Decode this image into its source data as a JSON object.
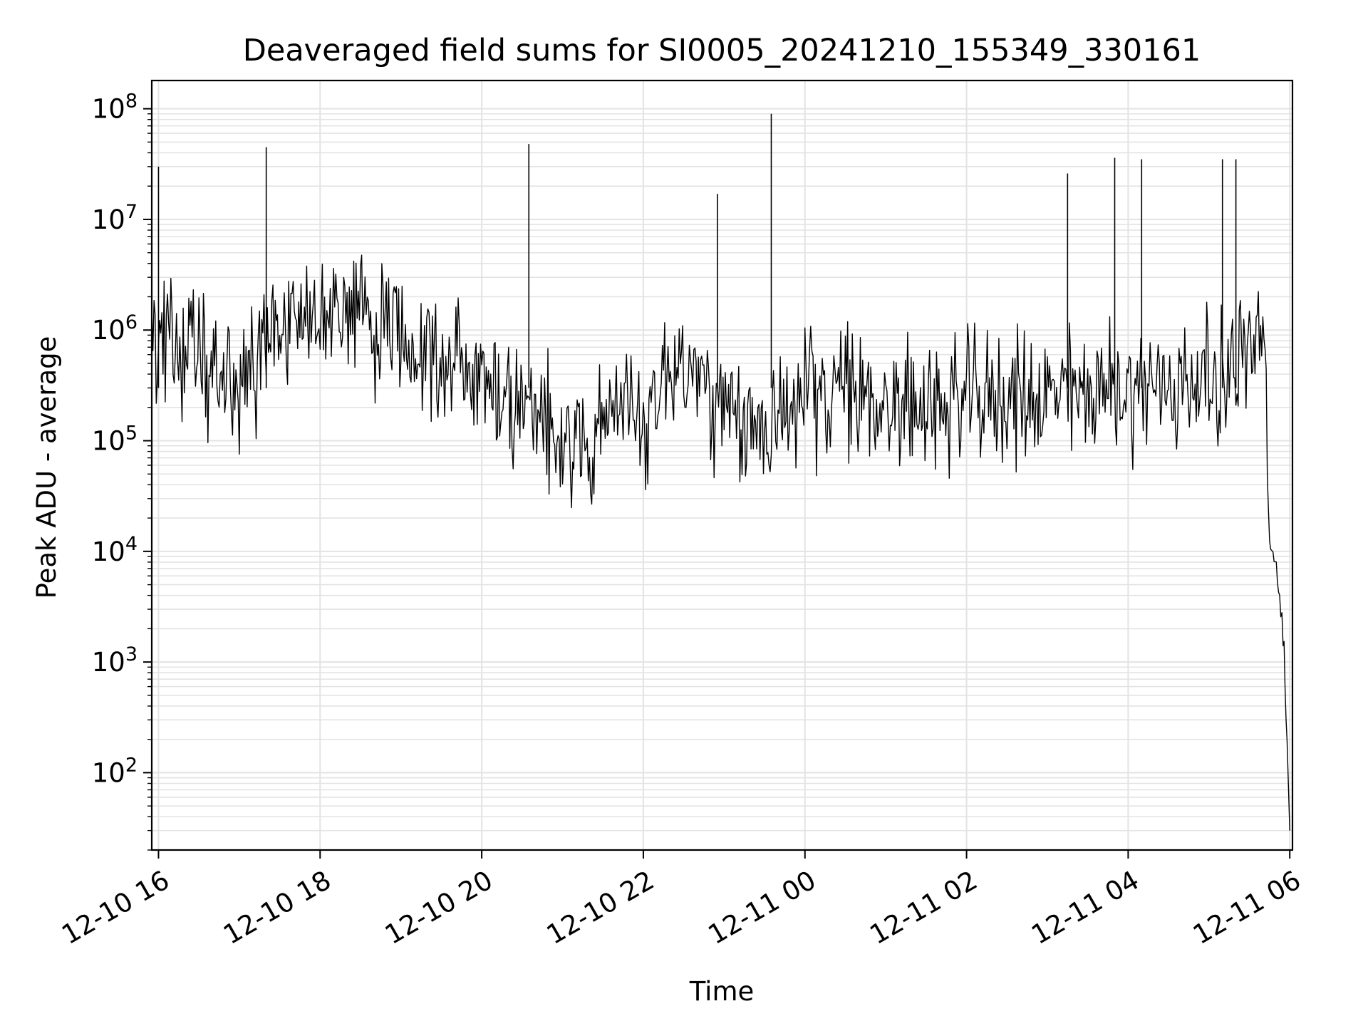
{
  "chart_data": {
    "type": "line",
    "title": "Deaveraged field sums for SI0005_20241210_155349_330161",
    "xlabel": "Time",
    "ylabel": "Peak ADU - average",
    "yscale": "log",
    "ylim": [
      20,
      180000000
    ],
    "xlim": [
      "2024-12-10 15:55",
      "2024-12-11 06:02"
    ],
    "grid": true,
    "line_color": "#000000",
    "grid_color": "#e3e3e3",
    "x_ticks": [
      {
        "value": "2024-12-10 16:00",
        "label": "12-10 16"
      },
      {
        "value": "2024-12-10 18:00",
        "label": "12-10 18"
      },
      {
        "value": "2024-12-10 20:00",
        "label": "12-10 20"
      },
      {
        "value": "2024-12-10 22:00",
        "label": "12-10 22"
      },
      {
        "value": "2024-12-11 00:00",
        "label": "12-11 00"
      },
      {
        "value": "2024-12-11 02:00",
        "label": "12-11 02"
      },
      {
        "value": "2024-12-11 04:00",
        "label": "12-11 04"
      },
      {
        "value": "2024-12-11 06:00",
        "label": "12-11 06"
      }
    ],
    "y_ticks": [
      {
        "value": 100,
        "base": "10",
        "exp": "2"
      },
      {
        "value": 1000,
        "base": "10",
        "exp": "3"
      },
      {
        "value": 10000,
        "base": "10",
        "exp": "4"
      },
      {
        "value": 100000,
        "base": "10",
        "exp": "5"
      },
      {
        "value": 1000000,
        "base": "10",
        "exp": "6"
      },
      {
        "value": 10000000,
        "base": "10",
        "exp": "7"
      },
      {
        "value": 100000000,
        "base": "10",
        "exp": "8"
      }
    ],
    "series": [
      {
        "x": [
          "2024-12-10 15:55",
          "2024-12-10 16:10",
          "2024-12-10 16:25",
          "2024-12-10 16:40",
          "2024-12-10 17:00",
          "2024-12-10 17:20",
          "2024-12-10 17:40",
          "2024-12-10 18:00",
          "2024-12-10 18:20",
          "2024-12-10 18:40",
          "2024-12-10 19:00",
          "2024-12-10 19:20",
          "2024-12-10 19:40",
          "2024-12-10 20:00",
          "2024-12-10 20:20",
          "2024-12-10 20:40",
          "2024-12-10 21:00",
          "2024-12-10 21:20",
          "2024-12-10 21:40",
          "2024-12-10 22:00",
          "2024-12-10 22:20",
          "2024-12-10 22:40",
          "2024-12-10 23:00",
          "2024-12-10 23:20",
          "2024-12-10 23:40",
          "2024-12-11 00:00",
          "2024-12-11 00:30",
          "2024-12-11 01:00",
          "2024-12-11 01:30",
          "2024-12-11 02:00",
          "2024-12-11 02:30",
          "2024-12-11 03:00",
          "2024-12-11 03:30",
          "2024-12-11 04:00",
          "2024-12-11 04:30",
          "2024-12-11 05:00",
          "2024-12-11 05:20",
          "2024-12-11 05:40",
          "2024-12-11 05:45",
          "2024-12-11 05:50",
          "2024-12-11 05:55",
          "2024-12-11 05:58",
          "2024-12-11 06:00"
        ],
        "values": [
          900000,
          800000,
          600000,
          400000,
          300000,
          700000,
          1500000,
          1200000,
          1500000,
          1100000,
          900000,
          700000,
          500000,
          350000,
          250000,
          150000,
          120000,
          100000,
          200000,
          150000,
          500000,
          400000,
          150000,
          120000,
          180000,
          250000,
          280000,
          220000,
          200000,
          230000,
          250000,
          250000,
          280000,
          300000,
          320000,
          350000,
          500000,
          900000,
          12000,
          7000,
          2000,
          200,
          30
        ]
      }
    ],
    "annotations": [
      {
        "x": "2024-12-10 16:00",
        "value": 30000000,
        "note": "spike"
      },
      {
        "x": "2024-12-10 17:20",
        "value": 45000000,
        "note": "spike"
      },
      {
        "x": "2024-12-10 20:35",
        "value": 48000000,
        "note": "spike"
      },
      {
        "x": "2024-12-10 22:55",
        "value": 17000000,
        "note": "spike"
      },
      {
        "x": "2024-12-10 23:35",
        "value": 90000000,
        "note": "spike"
      },
      {
        "x": "2024-12-11 03:15",
        "value": 26000000,
        "note": "spike"
      },
      {
        "x": "2024-12-11 03:50",
        "value": 36000000,
        "note": "spike"
      },
      {
        "x": "2024-12-11 04:10",
        "value": 35000000,
        "note": "spike"
      },
      {
        "x": "2024-12-11 05:10",
        "value": 35000000,
        "note": "spike"
      },
      {
        "x": "2024-12-11 05:20",
        "value": 35000000,
        "note": "spike"
      }
    ]
  }
}
